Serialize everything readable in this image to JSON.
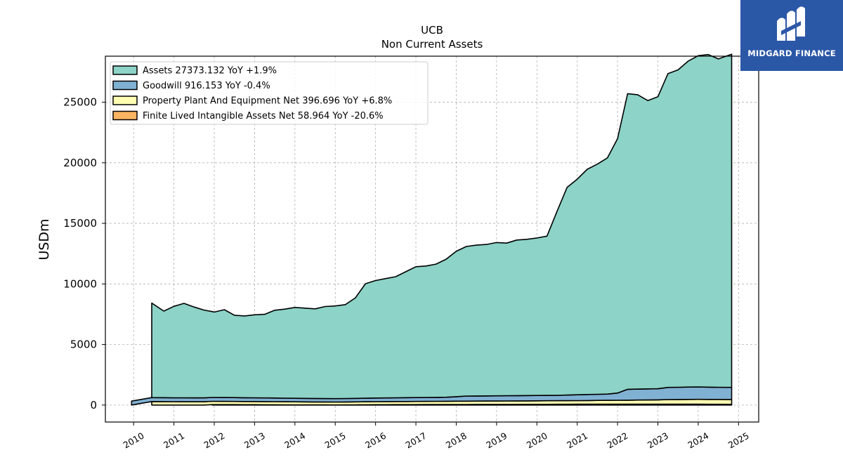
{
  "brand": {
    "name": "MIDGARD FINANCE",
    "bg_color": "#2b57a7"
  },
  "chart_data": {
    "type": "area",
    "title": "UCB",
    "subtitle": "Non Current  Assets",
    "ylabel": "USDm",
    "xlabel": "",
    "xlim": [
      2009.3,
      2025.5
    ],
    "ylim": [
      -1400,
      28800
    ],
    "yticks": [
      0,
      5000,
      10000,
      15000,
      20000,
      25000
    ],
    "xticks": [
      2010,
      2011,
      2012,
      2013,
      2014,
      2015,
      2016,
      2017,
      2018,
      2019,
      2020,
      2021,
      2022,
      2023,
      2024,
      2025
    ],
    "grid": true,
    "legend_position": "top-left",
    "series": [
      {
        "name": "Assets  27373.132 YoY +1.9%",
        "color": "#8dd3c7",
        "x": [
          2010.45,
          2010.75,
          2011.0,
          2011.25,
          2011.5,
          2011.75,
          2012.0,
          2012.25,
          2012.5,
          2012.75,
          2013.0,
          2013.25,
          2013.5,
          2013.75,
          2014.0,
          2014.25,
          2014.5,
          2014.75,
          2015.0,
          2015.25,
          2015.5,
          2015.75,
          2016.0,
          2016.25,
          2016.5,
          2016.75,
          2017.0,
          2017.25,
          2017.5,
          2017.75,
          2018.0,
          2018.25,
          2018.5,
          2018.75,
          2019.0,
          2019.25,
          2019.5,
          2019.75,
          2020.0,
          2020.25,
          2020.5,
          2020.75,
          2021.0,
          2021.25,
          2021.5,
          2021.75,
          2022.0,
          2022.25,
          2022.5,
          2022.75,
          2023.0,
          2023.25,
          2023.5,
          2023.75,
          2024.0,
          2024.25,
          2024.5,
          2024.83
        ],
        "values": [
          7800,
          7150,
          7550,
          7800,
          7500,
          7250,
          7050,
          7250,
          6800,
          6750,
          6850,
          6900,
          7250,
          7350,
          7500,
          7450,
          7400,
          7600,
          7650,
          7750,
          8300,
          9450,
          9700,
          9850,
          10000,
          10400,
          10800,
          10850,
          11000,
          11400,
          12000,
          12350,
          12450,
          12500,
          12650,
          12600,
          12850,
          12900,
          13000,
          13150,
          15200,
          17150,
          17800,
          18600,
          19000,
          19500,
          21000,
          24400,
          24300,
          23800,
          24100,
          25900,
          26200,
          26900,
          27350,
          27450,
          27100,
          27500
        ]
      },
      {
        "name": "Goodwill  916.153 YoY -0.4%",
        "color": "#80b1d3",
        "x": [
          2009.95,
          2010.45,
          2011.0,
          2012.0,
          2013.0,
          2014.0,
          2015.0,
          2016.0,
          2017.0,
          2017.75,
          2018.0,
          2018.25,
          2019.0,
          2020.0,
          2020.5,
          2021.0,
          2021.75,
          2022.0,
          2022.25,
          2023.0,
          2023.25,
          2023.75,
          2024.0,
          2024.83
        ],
        "values": [
          330,
          330,
          320,
          320,
          310,
          290,
          280,
          300,
          320,
          330,
          370,
          420,
          430,
          440,
          440,
          480,
          520,
          600,
          900,
          920,
          1000,
          1020,
          1020,
          1000
        ]
      },
      {
        "name": "Property Plant And Equipment Net  396.696 YoY +6.8%",
        "color": "#ffffb3",
        "x": [
          2010.45,
          2011.0,
          2012.0,
          2013.0,
          2014.0,
          2015.0,
          2016.0,
          2017.0,
          2018.0,
          2019.0,
          2020.0,
          2021.0,
          2022.0,
          2023.0,
          2023.25,
          2024.0,
          2024.83
        ],
        "values": [
          290,
          280,
          270,
          260,
          250,
          240,
          250,
          260,
          270,
          280,
          290,
          300,
          320,
          350,
          380,
          400,
          400
        ]
      },
      {
        "name": "Finite Lived Intangible Assets Net  58.964 YoY -20.6%",
        "color": "#fdb462",
        "x": [
          2011.95,
          2013.0,
          2014.0,
          2015.0,
          2016.0,
          2017.0,
          2018.0,
          2019.0,
          2020.0,
          2021.0,
          2022.0,
          2023.0,
          2024.0,
          2024.83
        ],
        "values": [
          40,
          30,
          20,
          10,
          30,
          40,
          50,
          55,
          60,
          70,
          75,
          80,
          70,
          60
        ]
      }
    ]
  }
}
